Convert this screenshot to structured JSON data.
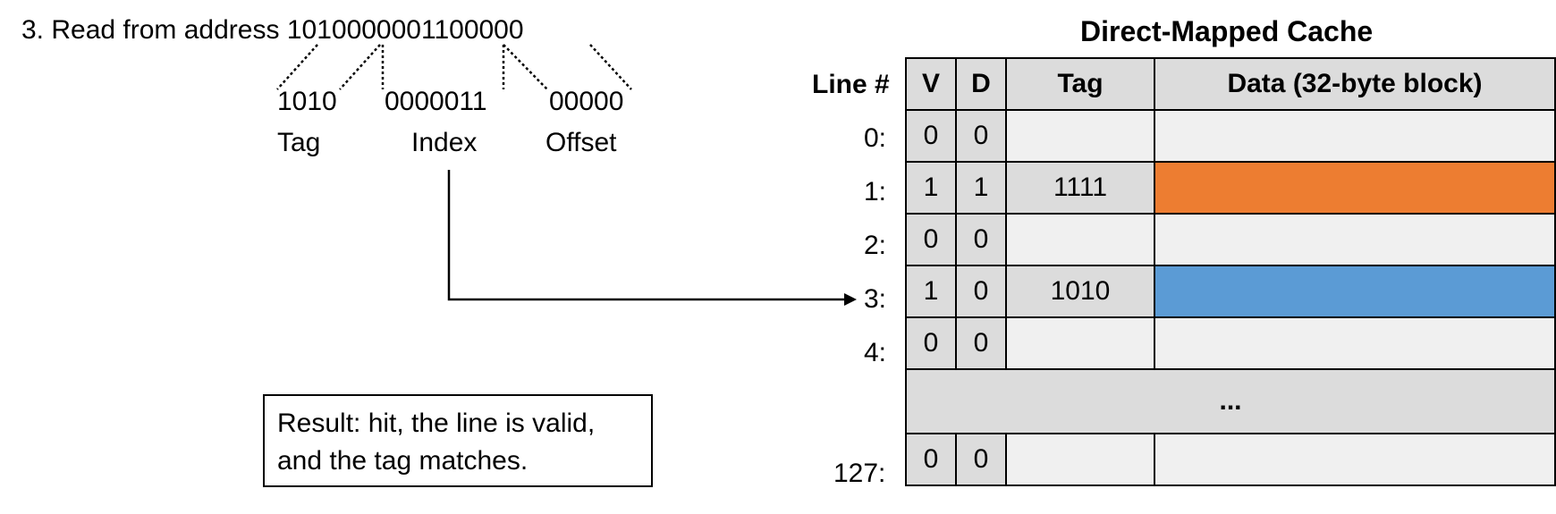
{
  "step": {
    "label": "3. Read from address",
    "address": "1010000001100000"
  },
  "fields": [
    {
      "bits": "1010",
      "name": "Tag"
    },
    {
      "bits": "0000011",
      "name": "Index"
    },
    {
      "bits": "00000",
      "name": "Offset"
    }
  ],
  "cache": {
    "title": "Direct-Mapped Cache",
    "headers": {
      "line": "Line #",
      "v": "V",
      "d": "D",
      "tag": "Tag",
      "data": "Data (32-byte block)"
    },
    "rows": [
      {
        "line": "0:",
        "v": "0",
        "d": "0",
        "tag": "",
        "color": ""
      },
      {
        "line": "1:",
        "v": "1",
        "d": "1",
        "tag": "1111",
        "color": "#ed7d31"
      },
      {
        "line": "2:",
        "v": "0",
        "d": "0",
        "tag": "",
        "color": ""
      },
      {
        "line": "3:",
        "v": "1",
        "d": "0",
        "tag": "1010",
        "color": "#5b9bd5"
      },
      {
        "line": "4:",
        "v": "0",
        "d": "0",
        "tag": "",
        "color": ""
      }
    ],
    "ellipsis": "...",
    "last_row": {
      "line": "127:",
      "v": "0",
      "d": "0",
      "tag": "",
      "color": ""
    }
  },
  "result": "Result: hit, the line is valid, and the tag matches."
}
